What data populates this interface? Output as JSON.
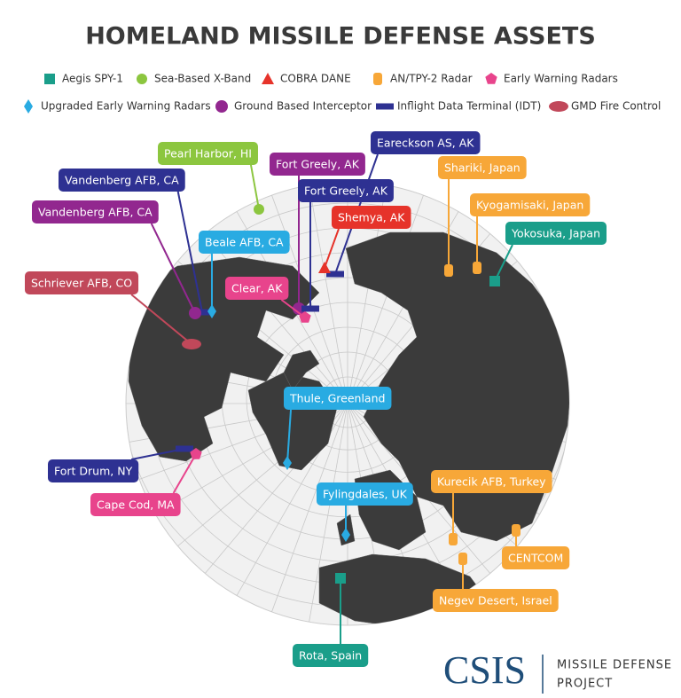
{
  "title": "HOMELAND MISSILE DEFENSE ASSETS",
  "legend": [
    {
      "label": "Aegis SPY-1",
      "color": "#1a9e8a"
    },
    {
      "label": "Sea-Based X-Band",
      "color": "#8cc63f"
    },
    {
      "label": "COBRA DANE",
      "color": "#e6332a"
    },
    {
      "label": "AN/TPY-2 Radar",
      "color": "#f7a738"
    },
    {
      "label": "Early Warning Radars",
      "color": "#e8448c"
    },
    {
      "label": "Upgraded Early Warning Radars",
      "color": "#29abe2"
    },
    {
      "label": "Ground Based Interceptor",
      "color": "#92278f"
    },
    {
      "label": "Inflight Data Terminal (IDT)",
      "color": "#2e3192"
    },
    {
      "label": "GMD Fire Control",
      "color": "#c1485a"
    }
  ],
  "sites": [
    {
      "label": "Pearl Harbor, HI",
      "color": "#8cc63f"
    },
    {
      "label": "Vandenberg AFB, CA",
      "color": "#2e3192"
    },
    {
      "label": "Vandenberg AFB, CA",
      "color": "#92278f"
    },
    {
      "label": "Beale AFB, CA",
      "color": "#29abe2"
    },
    {
      "label": "Schriever AFB, CO",
      "color": "#c1485a"
    },
    {
      "label": "Fort Greely, AK",
      "color": "#92278f"
    },
    {
      "label": "Fort Greely, AK",
      "color": "#2e3192"
    },
    {
      "label": "Eareckson AS, AK",
      "color": "#2e3192"
    },
    {
      "label": "Shemya, AK",
      "color": "#e6332a"
    },
    {
      "label": "Clear, AK",
      "color": "#e8448c"
    },
    {
      "label": "Shariki, Japan",
      "color": "#f7a738"
    },
    {
      "label": "Kyogamisaki, Japan",
      "color": "#f7a738"
    },
    {
      "label": "Yokosuka, Japan",
      "color": "#1a9e8a"
    },
    {
      "label": "Thule, Greenland",
      "color": "#29abe2"
    },
    {
      "label": "Fort Drum, NY",
      "color": "#2e3192"
    },
    {
      "label": "Cape Cod, MA",
      "color": "#e8448c"
    },
    {
      "label": "Fylingdales, UK",
      "color": "#29abe2"
    },
    {
      "label": "Kurecik AFB, Turkey",
      "color": "#f7a738"
    },
    {
      "label": "CENTCOM",
      "color": "#f7a738"
    },
    {
      "label": "Negev Desert, Israel",
      "color": "#f7a738"
    },
    {
      "label": "Rota, Spain",
      "color": "#1a9e8a"
    }
  ],
  "logo": {
    "name": "CSIS",
    "line1": "MISSILE DEFENSE",
    "line2": "PROJECT"
  }
}
